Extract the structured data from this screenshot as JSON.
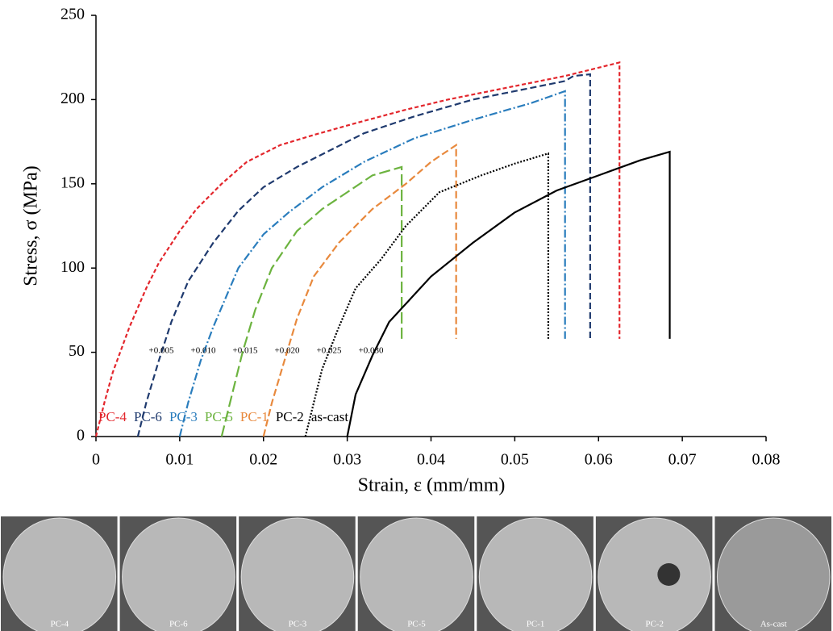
{
  "chart_data": {
    "type": "line",
    "x_label": "Strain, ε (mm/mm)",
    "y_label": "Stress, σ (MPa)",
    "xlim": [
      0,
      0.08
    ],
    "xticks": [
      0,
      0.01,
      0.02,
      0.03,
      0.04,
      0.05,
      0.06,
      0.07,
      0.08
    ],
    "ylim": [
      0,
      250
    ],
    "yticks": [
      0,
      50,
      100,
      150,
      200,
      250
    ],
    "grid": false,
    "legend": "lower left",
    "annotations": [
      "+0.005",
      "+0.010",
      "+0.015",
      "+0.020",
      "+0.025",
      "+0.030"
    ],
    "series": [
      {
        "name": "PC-4",
        "color": "#e3262c",
        "dash": "5 3",
        "x": [
          0,
          0.001,
          0.002,
          0.004,
          0.006,
          0.0075,
          0.01,
          0.012,
          0.015,
          0.018,
          0.022,
          0.026,
          0.031,
          0.037,
          0.042,
          0.05,
          0.056,
          0.0625,
          0.0625
        ],
        "values": [
          0,
          20,
          38,
          65,
          88,
          103,
          122,
          135,
          150,
          163,
          173,
          179,
          186,
          194,
          200,
          208,
          214,
          222,
          58
        ]
      },
      {
        "name": "PC-6",
        "color": "#1f3a6e",
        "dash": "8 4",
        "x": [
          0.005,
          0.006,
          0.0075,
          0.009,
          0.011,
          0.014,
          0.017,
          0.02,
          0.024,
          0.028,
          0.032,
          0.038,
          0.045,
          0.052,
          0.056,
          0.057,
          0.059,
          0.059
        ],
        "values": [
          0,
          20,
          45,
          68,
          92,
          115,
          134,
          148,
          160,
          170,
          180,
          190,
          200,
          207,
          211,
          214,
          215,
          58
        ]
      },
      {
        "name": "PC-3",
        "color": "#2a7dbd",
        "dash": "10 3 2 3",
        "x": [
          0.01,
          0.011,
          0.0125,
          0.014,
          0.017,
          0.02,
          0.023,
          0.027,
          0.032,
          0.038,
          0.045,
          0.052,
          0.056,
          0.056
        ],
        "values": [
          0,
          20,
          45,
          65,
          100,
          120,
          133,
          148,
          163,
          177,
          188,
          198,
          205,
          58
        ]
      },
      {
        "name": "PC-5",
        "color": "#6cb33f",
        "dash": "14 5",
        "x": [
          0.015,
          0.016,
          0.0175,
          0.019,
          0.021,
          0.024,
          0.027,
          0.03,
          0.033,
          0.0365,
          0.0365
        ],
        "values": [
          0,
          20,
          50,
          75,
          100,
          122,
          135,
          145,
          155,
          160,
          58
        ]
      },
      {
        "name": "PC-1",
        "color": "#e8893d",
        "dash": "9 4",
        "x": [
          0.02,
          0.021,
          0.0225,
          0.024,
          0.026,
          0.029,
          0.033,
          0.037,
          0.04,
          0.043,
          0.043
        ],
        "values": [
          0,
          20,
          45,
          70,
          95,
          115,
          135,
          150,
          163,
          173,
          58
        ]
      },
      {
        "name": "PC-2",
        "color": "#000000",
        "dash": "2 2",
        "x": [
          0.025,
          0.026,
          0.027,
          0.029,
          0.031,
          0.034,
          0.037,
          0.041,
          0.046,
          0.05,
          0.054,
          0.054
        ],
        "values": [
          0,
          20,
          40,
          65,
          88,
          105,
          125,
          145,
          155,
          162,
          168,
          58
        ]
      },
      {
        "name": "as-cast",
        "color": "#000000",
        "dash": "none",
        "x": [
          0.03,
          0.031,
          0.033,
          0.035,
          0.04,
          0.045,
          0.05,
          0.055,
          0.06,
          0.065,
          0.0685,
          0.0685
        ],
        "values": [
          0,
          25,
          48,
          68,
          95,
          115,
          133,
          146,
          155,
          164,
          169,
          58
        ]
      }
    ]
  },
  "images": {
    "labels": [
      "PC-4",
      "PC-6",
      "PC-3",
      "PC-5",
      "PC-1",
      "PC-2",
      "As-cast"
    ]
  }
}
